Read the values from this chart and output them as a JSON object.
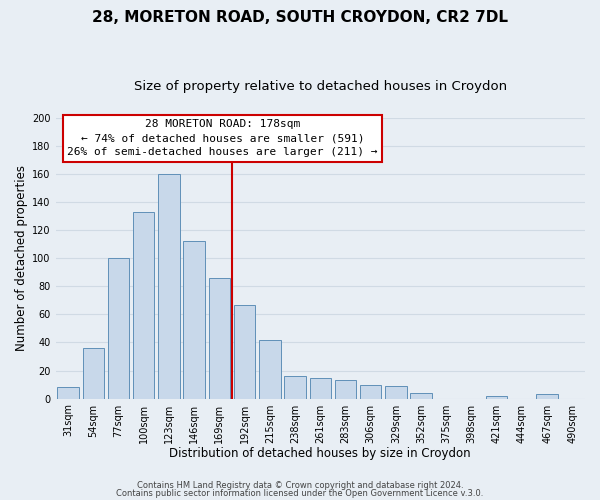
{
  "title": "28, MORETON ROAD, SOUTH CROYDON, CR2 7DL",
  "subtitle": "Size of property relative to detached houses in Croydon",
  "xlabel": "Distribution of detached houses by size in Croydon",
  "ylabel": "Number of detached properties",
  "bar_labels": [
    "31sqm",
    "54sqm",
    "77sqm",
    "100sqm",
    "123sqm",
    "146sqm",
    "169sqm",
    "192sqm",
    "215sqm",
    "238sqm",
    "261sqm",
    "283sqm",
    "306sqm",
    "329sqm",
    "352sqm",
    "375sqm",
    "398sqm",
    "421sqm",
    "444sqm",
    "467sqm",
    "490sqm"
  ],
  "bar_values": [
    8,
    36,
    100,
    133,
    160,
    112,
    86,
    67,
    42,
    16,
    15,
    13,
    10,
    9,
    4,
    0,
    0,
    2,
    0,
    3,
    0
  ],
  "bar_color": "#c8d8ea",
  "bar_edge_color": "#6090b8",
  "vline_index": 7,
  "vline_color": "#cc0000",
  "ylim": [
    0,
    200
  ],
  "yticks": [
    0,
    20,
    40,
    60,
    80,
    100,
    120,
    140,
    160,
    180,
    200
  ],
  "annotation_title": "28 MORETON ROAD: 178sqm",
  "annotation_line1": "← 74% of detached houses are smaller (591)",
  "annotation_line2": "26% of semi-detached houses are larger (211) →",
  "annotation_box_color": "#ffffff",
  "annotation_box_edge": "#cc0000",
  "footer_line1": "Contains HM Land Registry data © Crown copyright and database right 2024.",
  "footer_line2": "Contains public sector information licensed under the Open Government Licence v.3.0.",
  "background_color": "#e8eef4",
  "grid_color": "#d0dae4",
  "title_fontsize": 11,
  "subtitle_fontsize": 9.5,
  "label_fontsize": 8.5,
  "tick_fontsize": 7,
  "annotation_fontsize": 8,
  "footer_fontsize": 6
}
